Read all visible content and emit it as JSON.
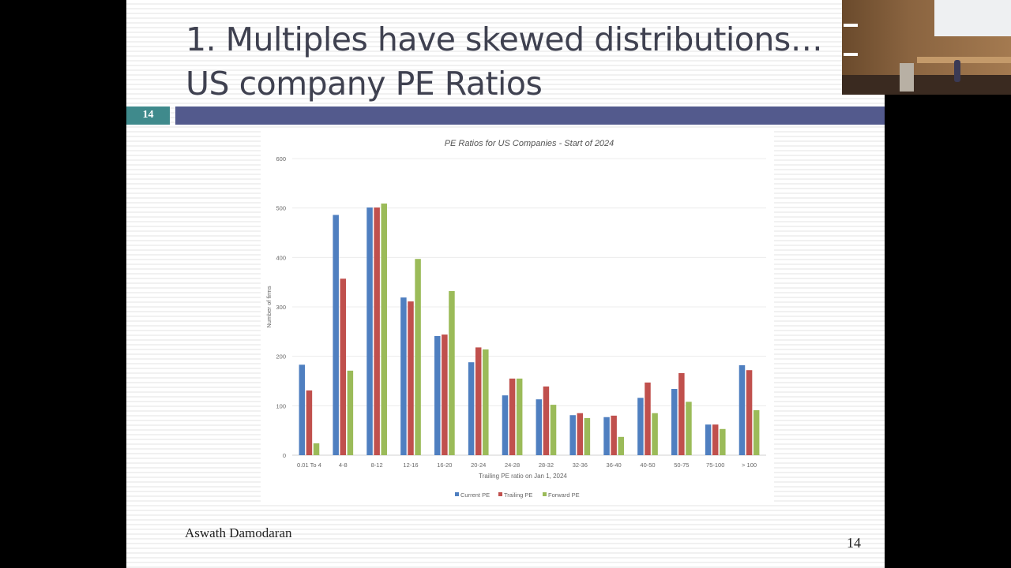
{
  "slide": {
    "title_line1": "1. Multiples have skewed distributions…",
    "title_line2": "US company PE Ratios",
    "slide_number_badge": "14",
    "footer_author": "Aswath Damodaran",
    "page_number": "14"
  },
  "colors": {
    "current": "#4f7fc0",
    "trailing": "#c0504d",
    "forward": "#9bbb59",
    "band": "#535a8d",
    "badge": "#3f8a8c"
  },
  "chart_data": {
    "type": "bar",
    "title": "PE Ratios for US Companies - Start of 2024",
    "xlabel": "Trailing PE ratio on Jan 1, 2024",
    "ylabel": "Number of firms",
    "ylim": [
      0,
      600
    ],
    "yticks": [
      0,
      100,
      200,
      300,
      400,
      500,
      600
    ],
    "grid": true,
    "legend_position": "bottom",
    "categories": [
      "0.01 To 4",
      "4-8",
      "8-12",
      "12-16",
      "16-20",
      "20-24",
      "24-28",
      "28-32",
      "32-36",
      "36-40",
      "40-50",
      "50-75",
      "75-100",
      "> 100"
    ],
    "series": [
      {
        "name": "Current PE",
        "values": [
          183,
          486,
          501,
          319,
          241,
          188,
          121,
          113,
          81,
          77,
          116,
          134,
          62,
          182
        ]
      },
      {
        "name": "Trailing PE",
        "values": [
          131,
          357,
          501,
          311,
          244,
          218,
          155,
          139,
          85,
          80,
          147,
          166,
          62,
          172
        ]
      },
      {
        "name": "Forward PE",
        "values": [
          24,
          171,
          509,
          397,
          332,
          214,
          155,
          102,
          75,
          37,
          85,
          108,
          53,
          91
        ]
      }
    ]
  }
}
